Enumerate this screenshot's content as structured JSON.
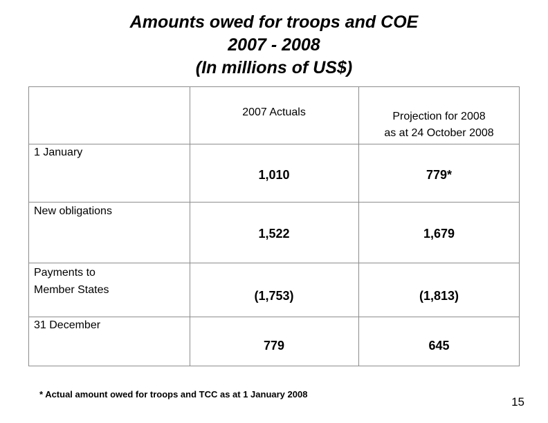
{
  "title": {
    "line1": "Amounts owed for troops and COE",
    "line2": "2007 - 2008",
    "line3": "(In millions of US$)"
  },
  "table": {
    "headers": {
      "col1": "2007 Actuals",
      "col2_line1": "Projection for 2008",
      "col2_line2": "as at 24 October 2008"
    },
    "rows": [
      {
        "label": "1 January",
        "actual": "1,010",
        "projection": "779*"
      },
      {
        "label": "New obligations",
        "actual": "1,522",
        "projection": "1,679"
      },
      {
        "label_line1": "Payments to",
        "label_line2": "Member States",
        "actual": "(1,753)",
        "projection": "(1,813)"
      },
      {
        "label": "31 December",
        "actual": "779",
        "projection": "645"
      }
    ]
  },
  "footnote": "* Actual amount owed for troops and TCC as at 1 January 2008",
  "page_number": "15"
}
